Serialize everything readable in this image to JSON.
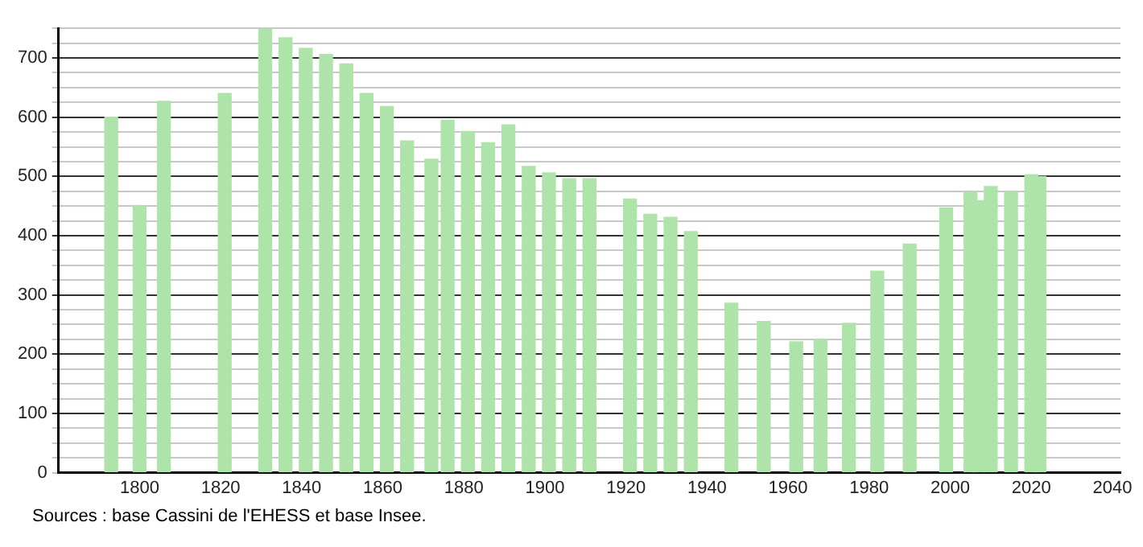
{
  "chart_data": {
    "type": "bar",
    "x": [
      1793,
      1800,
      1806,
      1821,
      1831,
      1836,
      1841,
      1846,
      1851,
      1856,
      1861,
      1866,
      1872,
      1876,
      1881,
      1886,
      1891,
      1896,
      1901,
      1906,
      1911,
      1921,
      1926,
      1931,
      1936,
      1946,
      1954,
      1962,
      1968,
      1975,
      1982,
      1990,
      1999,
      2005,
      2007,
      2010,
      2015,
      2020,
      2022
    ],
    "values": [
      600,
      451,
      627,
      640,
      750,
      734,
      716,
      706,
      690,
      640,
      618,
      560,
      529,
      595,
      576,
      557,
      587,
      517,
      506,
      496,
      496,
      462,
      436,
      431,
      407,
      286,
      255,
      221,
      225,
      252,
      340,
      386,
      447,
      473,
      459,
      483,
      474,
      503,
      500
    ],
    "color": "#aee3aa",
    "xlim": [
      1780,
      2042
    ],
    "xticks": [
      1800,
      1820,
      1840,
      1860,
      1880,
      1900,
      1920,
      1940,
      1960,
      1980,
      2000,
      2020,
      2040
    ],
    "ylim": [
      0,
      750
    ],
    "yticks": [
      0,
      {
        "value": 25,
        "label": null
      },
      {
        "value": 50,
        "label": null
      },
      {
        "value": 75,
        "label": null
      },
      100,
      {
        "value": 125,
        "label": null
      },
      {
        "value": 150,
        "label": null
      },
      {
        "value": 175,
        "label": null
      },
      200,
      {
        "value": 225,
        "label": null
      },
      {
        "value": 250,
        "label": null
      },
      {
        "value": 275,
        "label": null
      },
      300,
      {
        "value": 325,
        "label": null
      },
      {
        "value": 350,
        "label": null
      },
      {
        "value": 375,
        "label": null
      },
      400,
      {
        "value": 425,
        "label": null
      },
      {
        "value": 450,
        "label": null
      },
      {
        "value": 475,
        "label": null
      },
      500,
      {
        "value": 525,
        "label": null
      },
      {
        "value": 550,
        "label": null
      },
      {
        "value": 575,
        "label": null
      },
      600,
      {
        "value": 625,
        "label": null
      },
      {
        "value": 650,
        "label": null
      },
      {
        "value": 675,
        "label": null
      },
      700,
      {
        "value": 725,
        "label": null
      },
      {
        "value": 750,
        "label": null
      }
    ],
    "grid": "y",
    "annotations": [
      "Sources : base Cassini de l'EHESS et base Insee."
    ]
  }
}
